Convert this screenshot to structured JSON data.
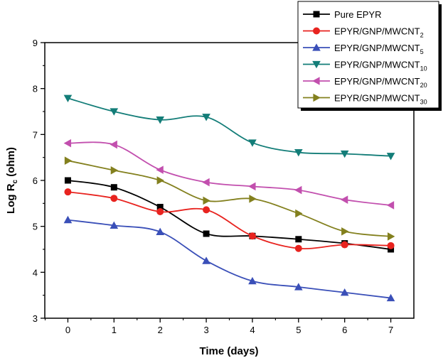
{
  "chart_data": {
    "type": "line",
    "xlabel": "Time (days)",
    "ylabel": "Log R",
    "ylabel_sub": "c",
    "ylabel_unit": " (ohm)",
    "xlim": [
      -0.5,
      7.5
    ],
    "ylim": [
      3,
      9
    ],
    "x_ticks": [
      0,
      1,
      2,
      3,
      4,
      5,
      6,
      7
    ],
    "y_ticks": [
      3,
      4,
      5,
      6,
      7,
      8,
      9
    ],
    "x": [
      0,
      1,
      2,
      3,
      4,
      5,
      6,
      7
    ],
    "grid": false,
    "legend_position": "top-right",
    "series": [
      {
        "name": "Pure EPYR",
        "sub": "",
        "color": "#000000",
        "marker": "square",
        "values": [
          6.0,
          5.85,
          5.42,
          4.84,
          4.79,
          4.72,
          4.63,
          4.5
        ]
      },
      {
        "name": "EPYR/GNP/MWCNT",
        "sub": "2",
        "color": "#e8231f",
        "marker": "circle",
        "values": [
          5.75,
          5.61,
          5.32,
          5.36,
          4.79,
          4.52,
          4.6,
          4.58
        ]
      },
      {
        "name": "EPYR/GNP/MWCNT",
        "sub": "5",
        "color": "#3a4fb8",
        "marker": "triangle-up",
        "values": [
          5.14,
          5.02,
          4.88,
          4.25,
          3.81,
          3.68,
          3.56,
          3.44
        ]
      },
      {
        "name": "EPYR/GNP/MWCNT",
        "sub": "10",
        "color": "#137d78",
        "marker": "triangle-down",
        "values": [
          7.79,
          7.5,
          7.32,
          7.38,
          6.82,
          6.61,
          6.58,
          6.53
        ]
      },
      {
        "name": "EPYR/GNP/MWCNT",
        "sub": "20",
        "color": "#c24fae",
        "marker": "triangle-left",
        "values": [
          6.81,
          6.78,
          6.23,
          5.96,
          5.87,
          5.79,
          5.58,
          5.46
        ]
      },
      {
        "name": "EPYR/GNP/MWCNT",
        "sub": "30",
        "color": "#83801e",
        "marker": "triangle-right",
        "values": [
          6.43,
          6.22,
          6.0,
          5.56,
          5.6,
          5.28,
          4.89,
          4.78
        ]
      }
    ]
  }
}
